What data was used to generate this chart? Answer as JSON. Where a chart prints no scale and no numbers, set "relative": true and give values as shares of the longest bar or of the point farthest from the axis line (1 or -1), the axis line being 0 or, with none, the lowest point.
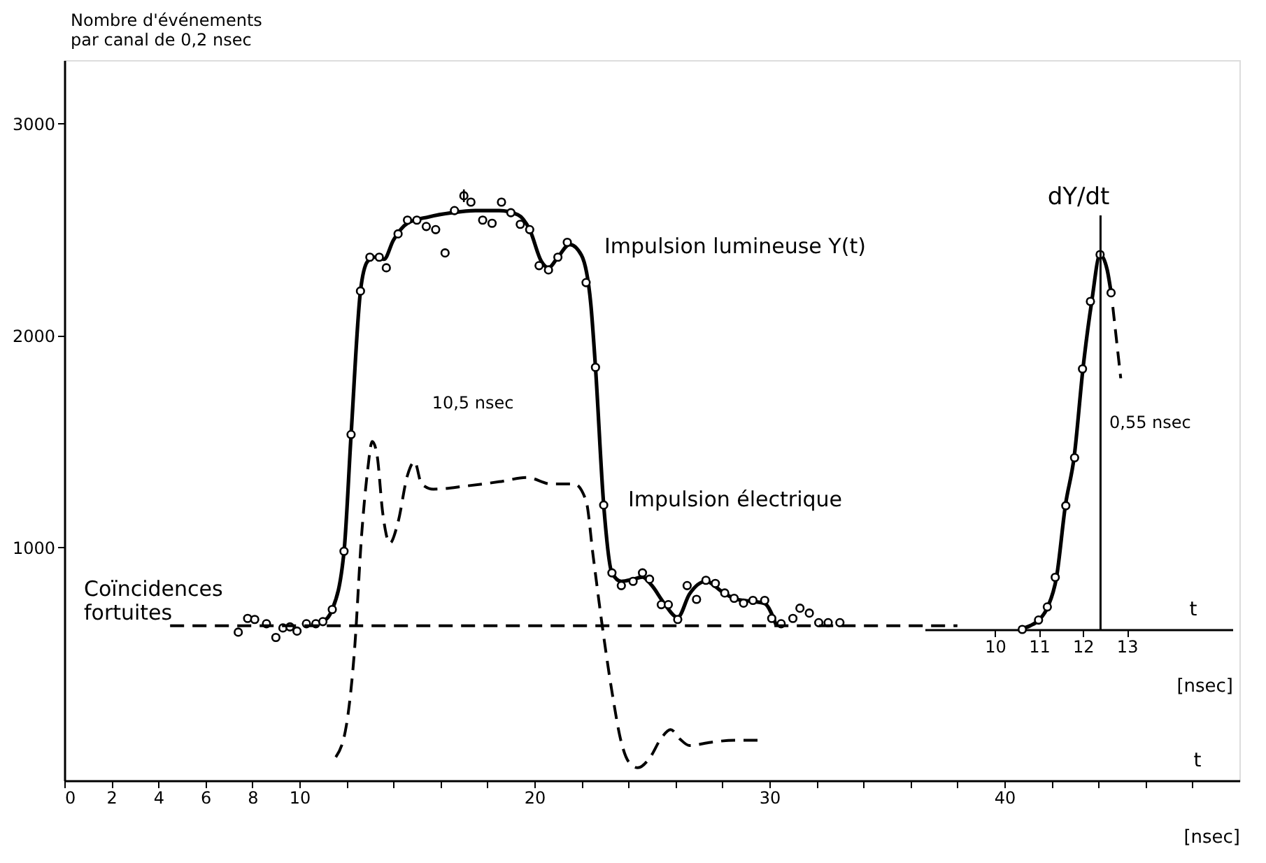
{
  "chart_data": [
    {
      "type": "line",
      "ylabel": "Nombre d'événements\npar canal de 0,2 nsec",
      "xlabel": "[nsec]",
      "xlim": [
        0,
        50
      ],
      "ylim": [
        -100,
        3300
      ],
      "xticks": [
        0,
        2,
        4,
        6,
        8,
        10,
        {
          "value": 12,
          "label": null
        },
        {
          "value": 14,
          "label": null
        },
        {
          "value": 16,
          "label": null
        },
        {
          "value": 18,
          "label": null
        },
        20,
        {
          "value": 22,
          "label": null
        },
        {
          "value": 24,
          "label": null
        },
        {
          "value": 26,
          "label": null
        },
        {
          "value": 28,
          "label": null
        },
        30,
        {
          "value": 32,
          "label": null
        },
        {
          "value": 34,
          "label": null
        },
        {
          "value": 36,
          "label": null
        },
        {
          "value": 38,
          "label": null
        },
        40,
        {
          "value": 42,
          "label": null
        },
        {
          "value": 44,
          "label": null
        },
        {
          "value": 46,
          "label": null
        },
        {
          "value": 48,
          "label": null
        }
      ],
      "yticks": [
        1000,
        2000,
        3000
      ],
      "grid": false,
      "series": [
        {
          "type": "line",
          "color": "#000000",
          "line_style": "solid",
          "x": [
            11.0,
            11.4,
            11.9,
            12.2,
            12.6,
            12.9,
            13.2,
            13.6,
            14.0,
            14.6,
            15.5,
            16.5,
            17.5,
            18.5,
            19.3,
            19.8,
            20.3,
            20.6,
            21.0,
            21.5,
            22.0,
            22.4,
            22.6,
            22.95,
            23.3,
            23.7,
            24.2,
            24.6,
            25.0,
            25.5,
            26.1,
            26.6,
            27.3,
            28.0,
            28.6,
            29.3,
            29.8,
            30.3
          ],
          "values": [
            650,
            707,
            980,
            1530,
            2210,
            2350,
            2370,
            2360,
            2450,
            2530,
            2560,
            2580,
            2590,
            2590,
            2570,
            2500,
            2350,
            2320,
            2370,
            2430,
            2380,
            2150,
            1850,
            1200,
            880,
            840,
            850,
            860,
            820,
            740,
            670,
            780,
            840,
            790,
            755,
            745,
            735,
            630
          ]
        },
        {
          "type": "scatter",
          "color": "#000000",
          "marker": "circle",
          "x": [
            7.4,
            7.8,
            8.1,
            8.6,
            9.0,
            9.3,
            9.6,
            9.9,
            10.3,
            10.7,
            11.0,
            11.4,
            11.9,
            12.2,
            12.6,
            13.0,
            13.4,
            13.7,
            14.2,
            14.6,
            15.0,
            15.4,
            15.8,
            16.2,
            16.6,
            17.0,
            17.3,
            17.8,
            18.2,
            18.6,
            19.0,
            19.4,
            19.8,
            20.2,
            20.6,
            21.0,
            21.4,
            22.2,
            22.6,
            22.95,
            23.3,
            23.7,
            24.2,
            24.6,
            24.9,
            25.4,
            25.7,
            26.1,
            26.5,
            26.9,
            27.3,
            27.7,
            28.1,
            28.5,
            28.9,
            29.3,
            29.8,
            30.1,
            30.5,
            31.0,
            31.3,
            31.7,
            32.1,
            32.5,
            33.0
          ],
          "values": [
            600,
            665,
            660,
            640,
            575,
            620,
            625,
            605,
            640,
            640,
            650,
            707,
            982,
            1533,
            2210,
            2370,
            2370,
            2320,
            2480,
            2545,
            2545,
            2515,
            2500,
            2390,
            2590,
            2660,
            2630,
            2545,
            2530,
            2630,
            2580,
            2525,
            2500,
            2330,
            2310,
            2370,
            2440,
            2250,
            1850,
            1200,
            880,
            820,
            840,
            880,
            850,
            730,
            730,
            660,
            820,
            755,
            845,
            830,
            785,
            760,
            737,
            750,
            750,
            665,
            640,
            665,
            713,
            690,
            645,
            645,
            645
          ],
          "errors": [
            null,
            null,
            null,
            null,
            null,
            null,
            null,
            null,
            null,
            null,
            null,
            null,
            null,
            null,
            null,
            null,
            null,
            null,
            null,
            null,
            null,
            null,
            null,
            null,
            null,
            30,
            null,
            null,
            null,
            null,
            null,
            null,
            null,
            null,
            null,
            null,
            null,
            null,
            null,
            null,
            null,
            null,
            null,
            null,
            null,
            null,
            null,
            null,
            null,
            null,
            null,
            null,
            null,
            null,
            null,
            null,
            null,
            null,
            null,
            null,
            null,
            null,
            null,
            null,
            null
          ]
        },
        {
          "type": "line",
          "color": "#000000",
          "line_style": "dashed",
          "x": [
            11.55,
            12.0,
            12.35,
            12.65,
            12.9,
            13.1,
            13.3,
            13.55,
            13.85,
            14.2,
            14.6,
            14.9,
            15.2,
            15.7,
            17.1,
            18.5,
            19.7,
            20.7,
            21.7,
            22.2,
            22.5,
            22.9,
            23.3,
            23.7,
            24.0,
            24.4,
            24.9,
            25.4,
            25.8,
            26.2,
            26.6,
            27.5,
            28.5,
            29.5
          ],
          "values": [
            10,
            160,
            520,
            1060,
            1360,
            1500,
            1440,
            1160,
            1020,
            1120,
            1340,
            1405,
            1300,
            1275,
            1290,
            1310,
            1330,
            1300,
            1300,
            1220,
            960,
            620,
            320,
            80,
            -10,
            -40,
            5,
            100,
            140,
            95,
            65,
            80,
            90,
            90
          ]
        },
        {
          "type": "line",
          "color": "#000000",
          "line_style": "dashed",
          "x": [
            4.5,
            38
          ],
          "values": [
            630,
            630
          ]
        }
      ],
      "annotations": [
        "t",
        "Impulsion lumineuse Y(t)",
        "Impulsion électrique",
        "10,5 nsec",
        "Coïncidences\nfortuites"
      ]
    },
    {
      "type": "line",
      "relative": true,
      "ylabel": "dY/dt",
      "xlabel": "[nsec]",
      "xlim": [
        8.4,
        15.4
      ],
      "xticks": [
        10,
        11,
        12,
        13
      ],
      "grid": false,
      "ref_lines": [
        {
          "axis": "x",
          "value": 12.4
        }
      ],
      "series": [
        {
          "type": "line",
          "color": "#000000",
          "line_style": "solid",
          "x": [
            10.55,
            10.8,
            11.0,
            11.2,
            11.4,
            11.6,
            11.8,
            12.0,
            12.2,
            12.39,
            12.55,
            12.64
          ],
          "values": [
            0,
            0.01,
            0.025,
            0.06,
            0.14,
            0.33,
            0.46,
            0.695,
            0.875,
            1.0,
            0.96,
            0.898
          ]
        },
        {
          "type": "scatter",
          "color": "#000000",
          "marker": "circle",
          "x": [
            10.62,
            10.99,
            11.19,
            11.37,
            11.61,
            11.81,
            11.99,
            12.17,
            12.39,
            12.64
          ],
          "values": [
            0,
            0.025,
            0.06,
            0.139,
            0.33,
            0.458,
            0.695,
            0.875,
            1.0,
            0.898
          ]
        },
        {
          "type": "line",
          "color": "#000000",
          "line_style": "dashed",
          "x": [
            12.68,
            12.86
          ],
          "values": [
            0.86,
            0.67
          ]
        }
      ],
      "annotations": [
        "t",
        "0,55 nsec"
      ]
    }
  ]
}
